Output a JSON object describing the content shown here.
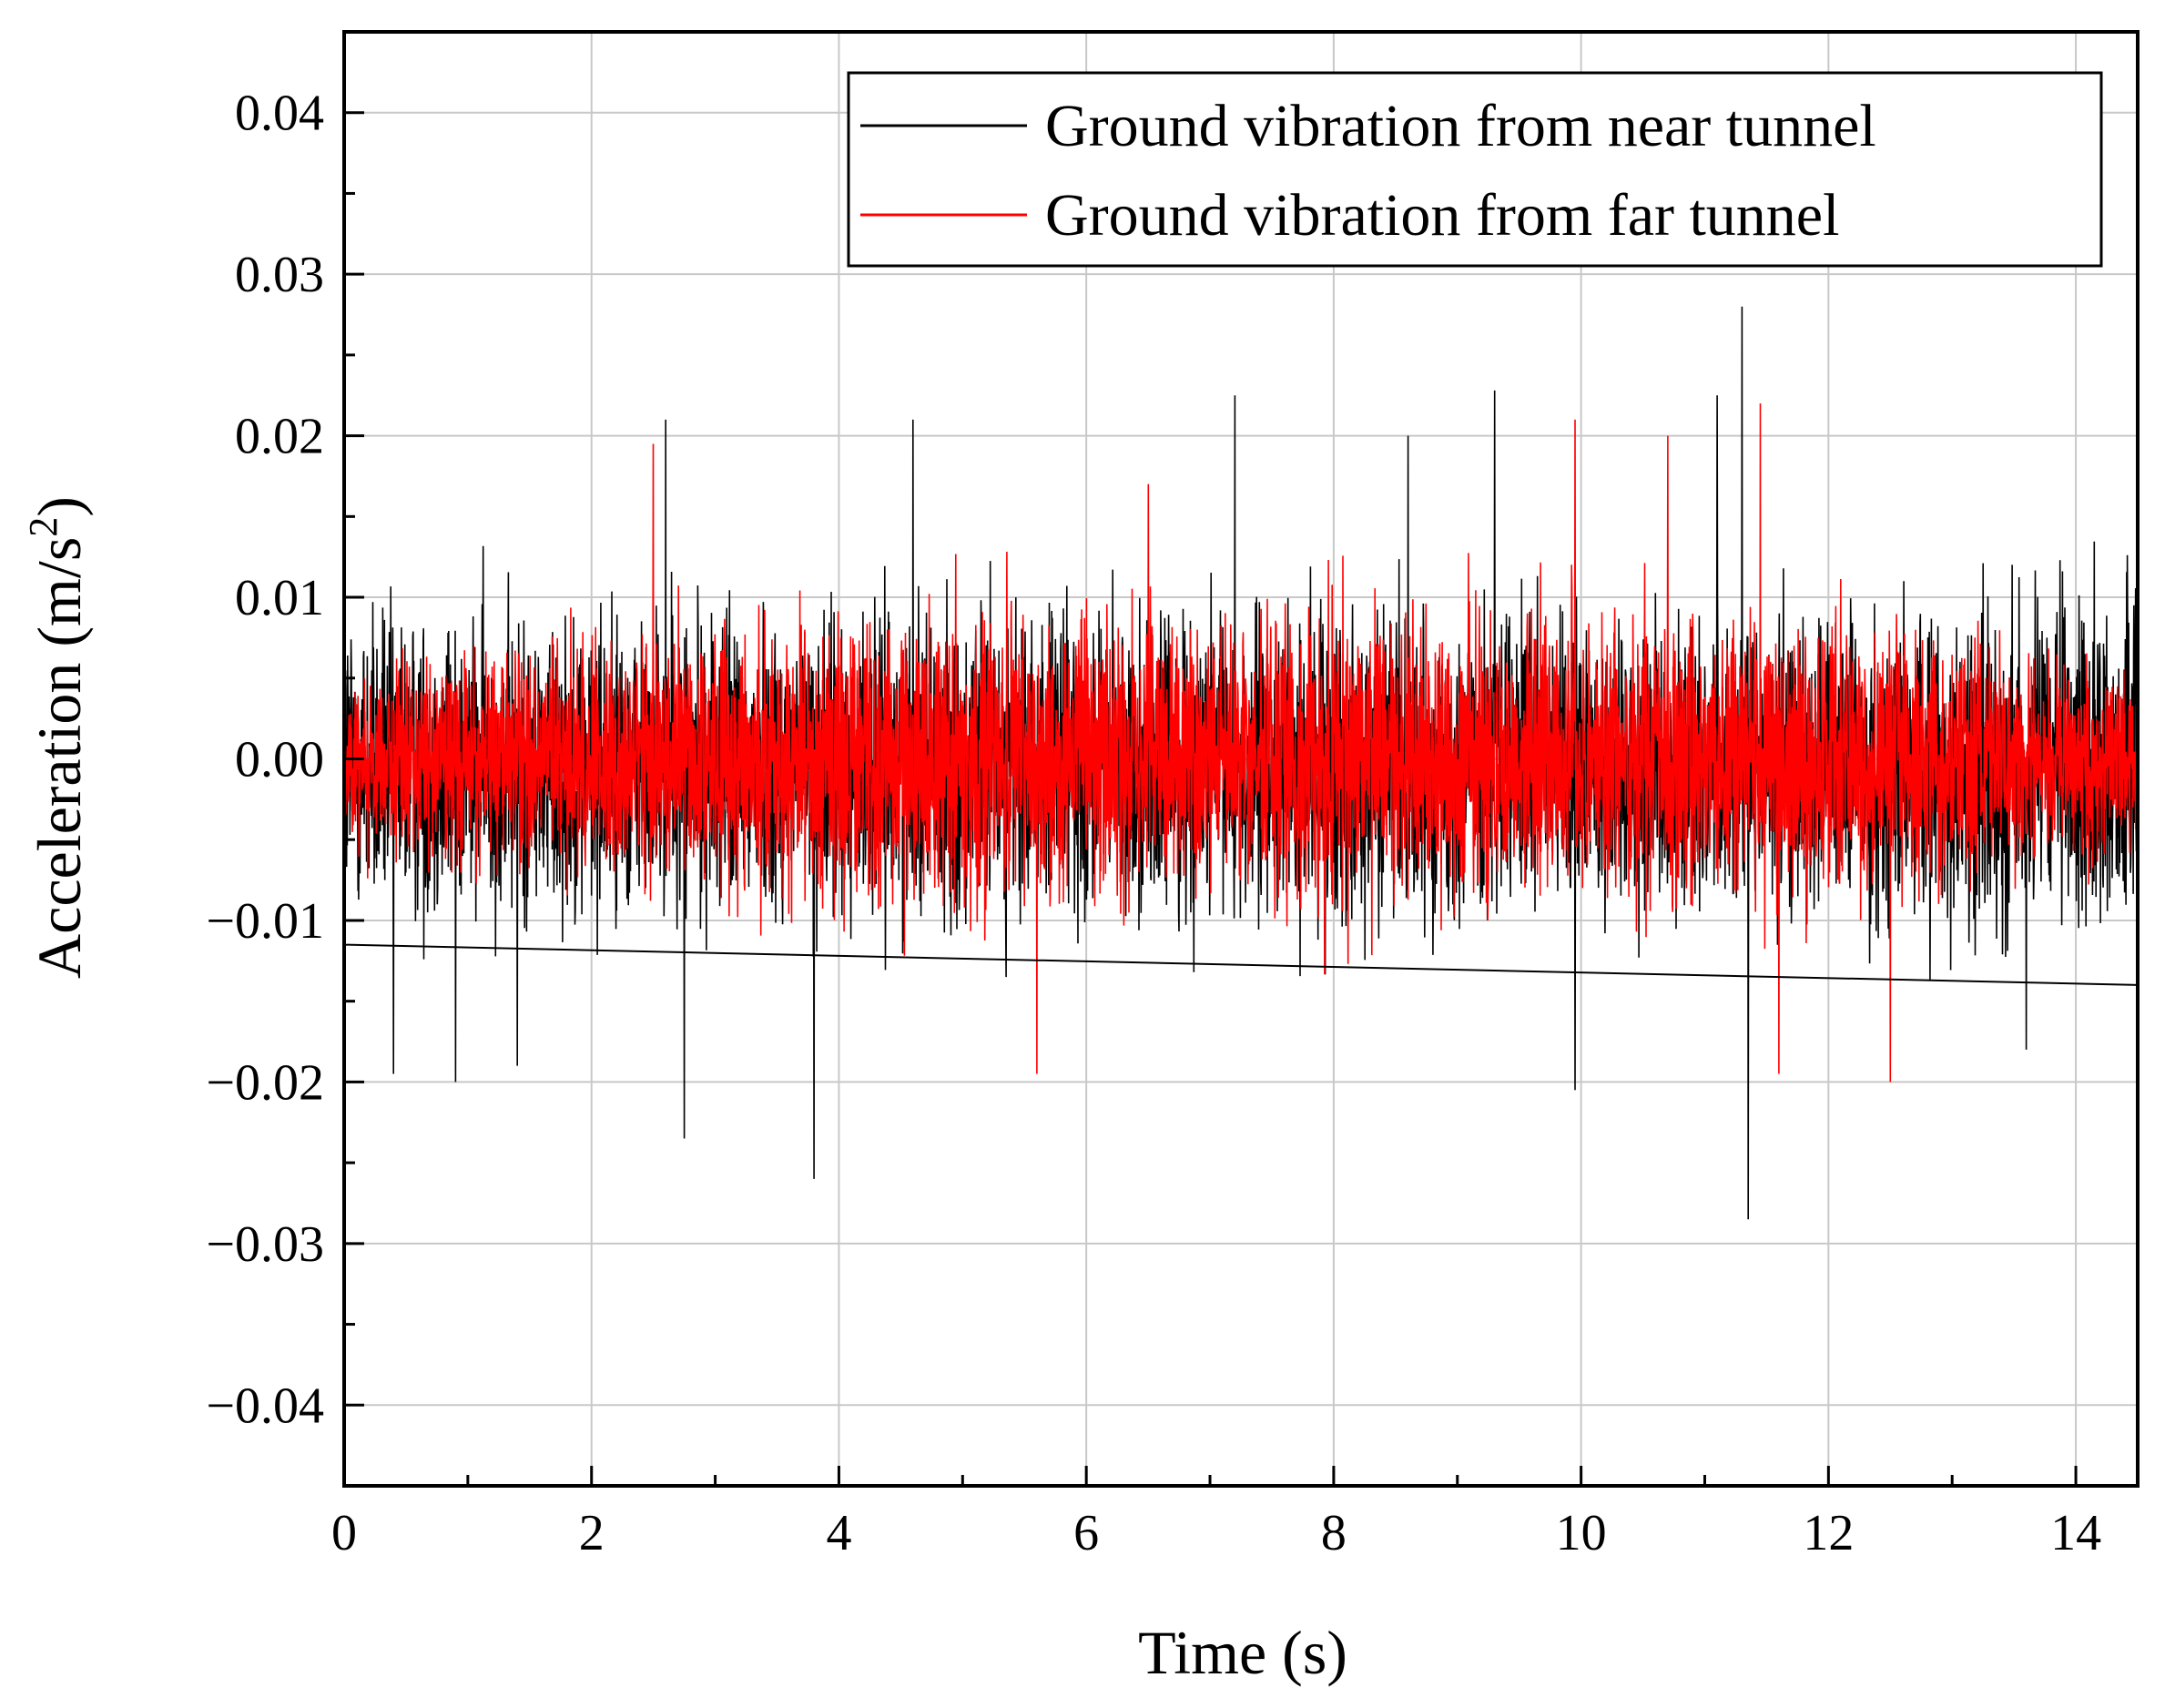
{
  "chart_data": {
    "type": "line",
    "title": "",
    "xlabel": "Time (s)",
    "ylabel_main": "Acceleration (m/s",
    "ylabel_sup": "2",
    "ylabel_close": ")",
    "xlim": [
      0,
      14.5
    ],
    "ylim": [
      -0.045,
      0.045
    ],
    "x_ticks": [
      0,
      2,
      4,
      6,
      8,
      10,
      12,
      14
    ],
    "x_tick_labels": [
      "0",
      "2",
      "4",
      "6",
      "8",
      "10",
      "12",
      "14"
    ],
    "y_ticks": [
      0.04,
      0.03,
      0.02,
      0.01,
      0.0,
      -0.01,
      -0.02,
      -0.03,
      -0.04
    ],
    "y_tick_labels": [
      "0.04",
      "0.03",
      "0.02",
      "0.01",
      "0.00",
      "−0.01",
      "−0.02",
      "−0.03",
      "−0.04"
    ],
    "grid": true,
    "legend_position": "top-right",
    "series": [
      {
        "name": "Ground vibration from near tunnel",
        "color": "#000000",
        "typical_envelope_x": [
          0,
          1,
          2,
          3,
          4,
          5,
          6,
          7,
          8,
          9,
          10,
          11,
          12,
          13,
          14,
          14.5
        ],
        "typical_envelope_upper": [
          0.011,
          0.01,
          0.01,
          0.01,
          0.01,
          0.01,
          0.01,
          0.01,
          0.01,
          0.01,
          0.01,
          0.01,
          0.01,
          0.01,
          0.011,
          0.011
        ],
        "typical_envelope_lower": [
          -0.012,
          -0.011,
          -0.011,
          -0.011,
          -0.011,
          -0.011,
          -0.011,
          -0.011,
          -0.011,
          -0.011,
          -0.011,
          -0.011,
          -0.011,
          -0.012,
          -0.012,
          -0.012
        ],
        "drift_baseline_x": [
          0,
          14.5
        ],
        "drift_baseline_y": [
          -0.0115,
          -0.014
        ],
        "peaks_x": [
          0.4,
          0.9,
          1.4,
          2.6,
          2.75,
          3.8,
          4.6,
          7.2,
          8.6,
          9.3,
          9.95,
          11.1,
          11.3,
          11.35,
          13.6
        ],
        "peaks_y": [
          -0.0195,
          -0.02,
          -0.019,
          0.021,
          -0.0235,
          -0.026,
          0.021,
          0.0225,
          0.02,
          0.0228,
          -0.0205,
          0.0225,
          0.028,
          -0.0285,
          -0.018
        ]
      },
      {
        "name": "Ground vibration from far tunnel",
        "color": "#ff0000",
        "typical_envelope_x": [
          0,
          1,
          2,
          3,
          4,
          5,
          6,
          7,
          8,
          9,
          10,
          11,
          12,
          13,
          14,
          14.5
        ],
        "typical_envelope_upper": [
          0.006,
          0.007,
          0.008,
          0.009,
          0.01,
          0.01,
          0.01,
          0.01,
          0.01,
          0.01,
          0.01,
          0.01,
          0.009,
          0.008,
          0.007,
          0.006
        ],
        "typical_envelope_lower": [
          -0.006,
          -0.007,
          -0.008,
          -0.009,
          -0.01,
          -0.01,
          -0.01,
          -0.01,
          -0.01,
          -0.01,
          -0.01,
          -0.01,
          -0.009,
          -0.008,
          -0.007,
          -0.006
        ],
        "peaks_x": [
          2.5,
          5.6,
          6.5,
          9.95,
          10.7,
          11.45,
          11.6,
          12.5
        ],
        "peaks_y": [
          0.0195,
          -0.0195,
          0.017,
          0.021,
          0.02,
          0.022,
          -0.0195,
          -0.02
        ]
      }
    ]
  }
}
